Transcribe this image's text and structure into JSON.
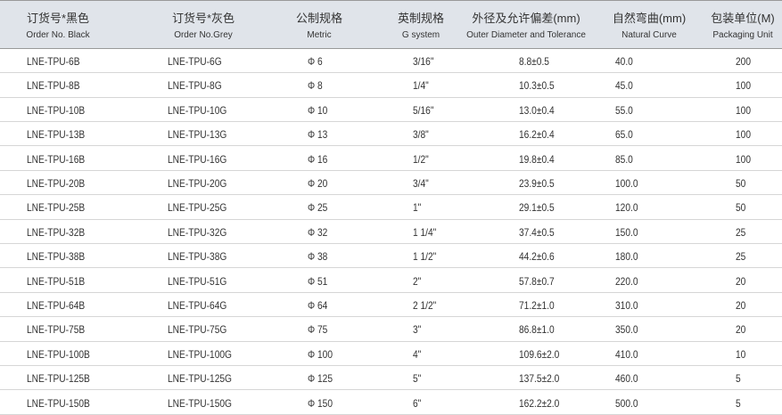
{
  "headers": [
    {
      "zh": "订货号*黑色",
      "en": "Order No. Black"
    },
    {
      "zh": "订货号*灰色",
      "en": "Order No.Grey"
    },
    {
      "zh": "公制规格",
      "en": "Metric"
    },
    {
      "zh": "英制规格",
      "en": "G system"
    },
    {
      "zh": "外径及允许偏差(mm)",
      "en": "Outer Diameter and Tolerance"
    },
    {
      "zh": "自然弯曲(mm)",
      "en": "Natural Curve"
    },
    {
      "zh": "包装单位(M)",
      "en": "Packaging Unit"
    }
  ],
  "rows": [
    [
      "LNE-TPU-6B",
      "LNE-TPU-6G",
      "Φ 6",
      "3/16\"",
      "8.8±0.5",
      "40.0",
      "200"
    ],
    [
      "LNE-TPU-8B",
      "LNE-TPU-8G",
      "Φ 8",
      "1/4\"",
      "10.3±0.5",
      "45.0",
      "100"
    ],
    [
      "LNE-TPU-10B",
      "LNE-TPU-10G",
      "Φ 10",
      "5/16\"",
      "13.0±0.4",
      "55.0",
      "100"
    ],
    [
      "LNE-TPU-13B",
      "LNE-TPU-13G",
      "Φ 13",
      "3/8\"",
      "16.2±0.4",
      "65.0",
      "100"
    ],
    [
      "LNE-TPU-16B",
      "LNE-TPU-16G",
      "Φ 16",
      "1/2\"",
      "19.8±0.4",
      "85.0",
      "100"
    ],
    [
      "LNE-TPU-20B",
      "LNE-TPU-20G",
      "Φ 20",
      "3/4\"",
      "23.9±0.5",
      "100.0",
      "50"
    ],
    [
      "LNE-TPU-25B",
      "LNE-TPU-25G",
      "Φ 25",
      "1\"",
      "29.1±0.5",
      "120.0",
      "50"
    ],
    [
      "LNE-TPU-32B",
      "LNE-TPU-32G",
      "Φ 32",
      "1 1/4\"",
      "37.4±0.5",
      "150.0",
      "25"
    ],
    [
      "LNE-TPU-38B",
      "LNE-TPU-38G",
      "Φ 38",
      "1 1/2\"",
      "44.2±0.6",
      "180.0",
      "25"
    ],
    [
      "LNE-TPU-51B",
      "LNE-TPU-51G",
      "Φ 51",
      "2\"",
      "57.8±0.7",
      "220.0",
      "20"
    ],
    [
      "LNE-TPU-64B",
      "LNE-TPU-64G",
      "Φ 64",
      "2 1/2\"",
      "71.2±1.0",
      "310.0",
      "20"
    ],
    [
      "LNE-TPU-75B",
      "LNE-TPU-75G",
      "Φ 75",
      "3\"",
      "86.8±1.0",
      "350.0",
      "20"
    ],
    [
      "LNE-TPU-100B",
      "LNE-TPU-100G",
      "Φ 100",
      "4\"",
      "109.6±2.0",
      "410.0",
      "10"
    ],
    [
      "LNE-TPU-125B",
      "LNE-TPU-125G",
      "Φ 125",
      "5\"",
      "137.5±2.0",
      "460.0",
      "5"
    ],
    [
      "LNE-TPU-150B",
      "LNE-TPU-150G",
      "Φ 150",
      "6\"",
      "162.2±2.0",
      "500.0",
      "5"
    ]
  ]
}
